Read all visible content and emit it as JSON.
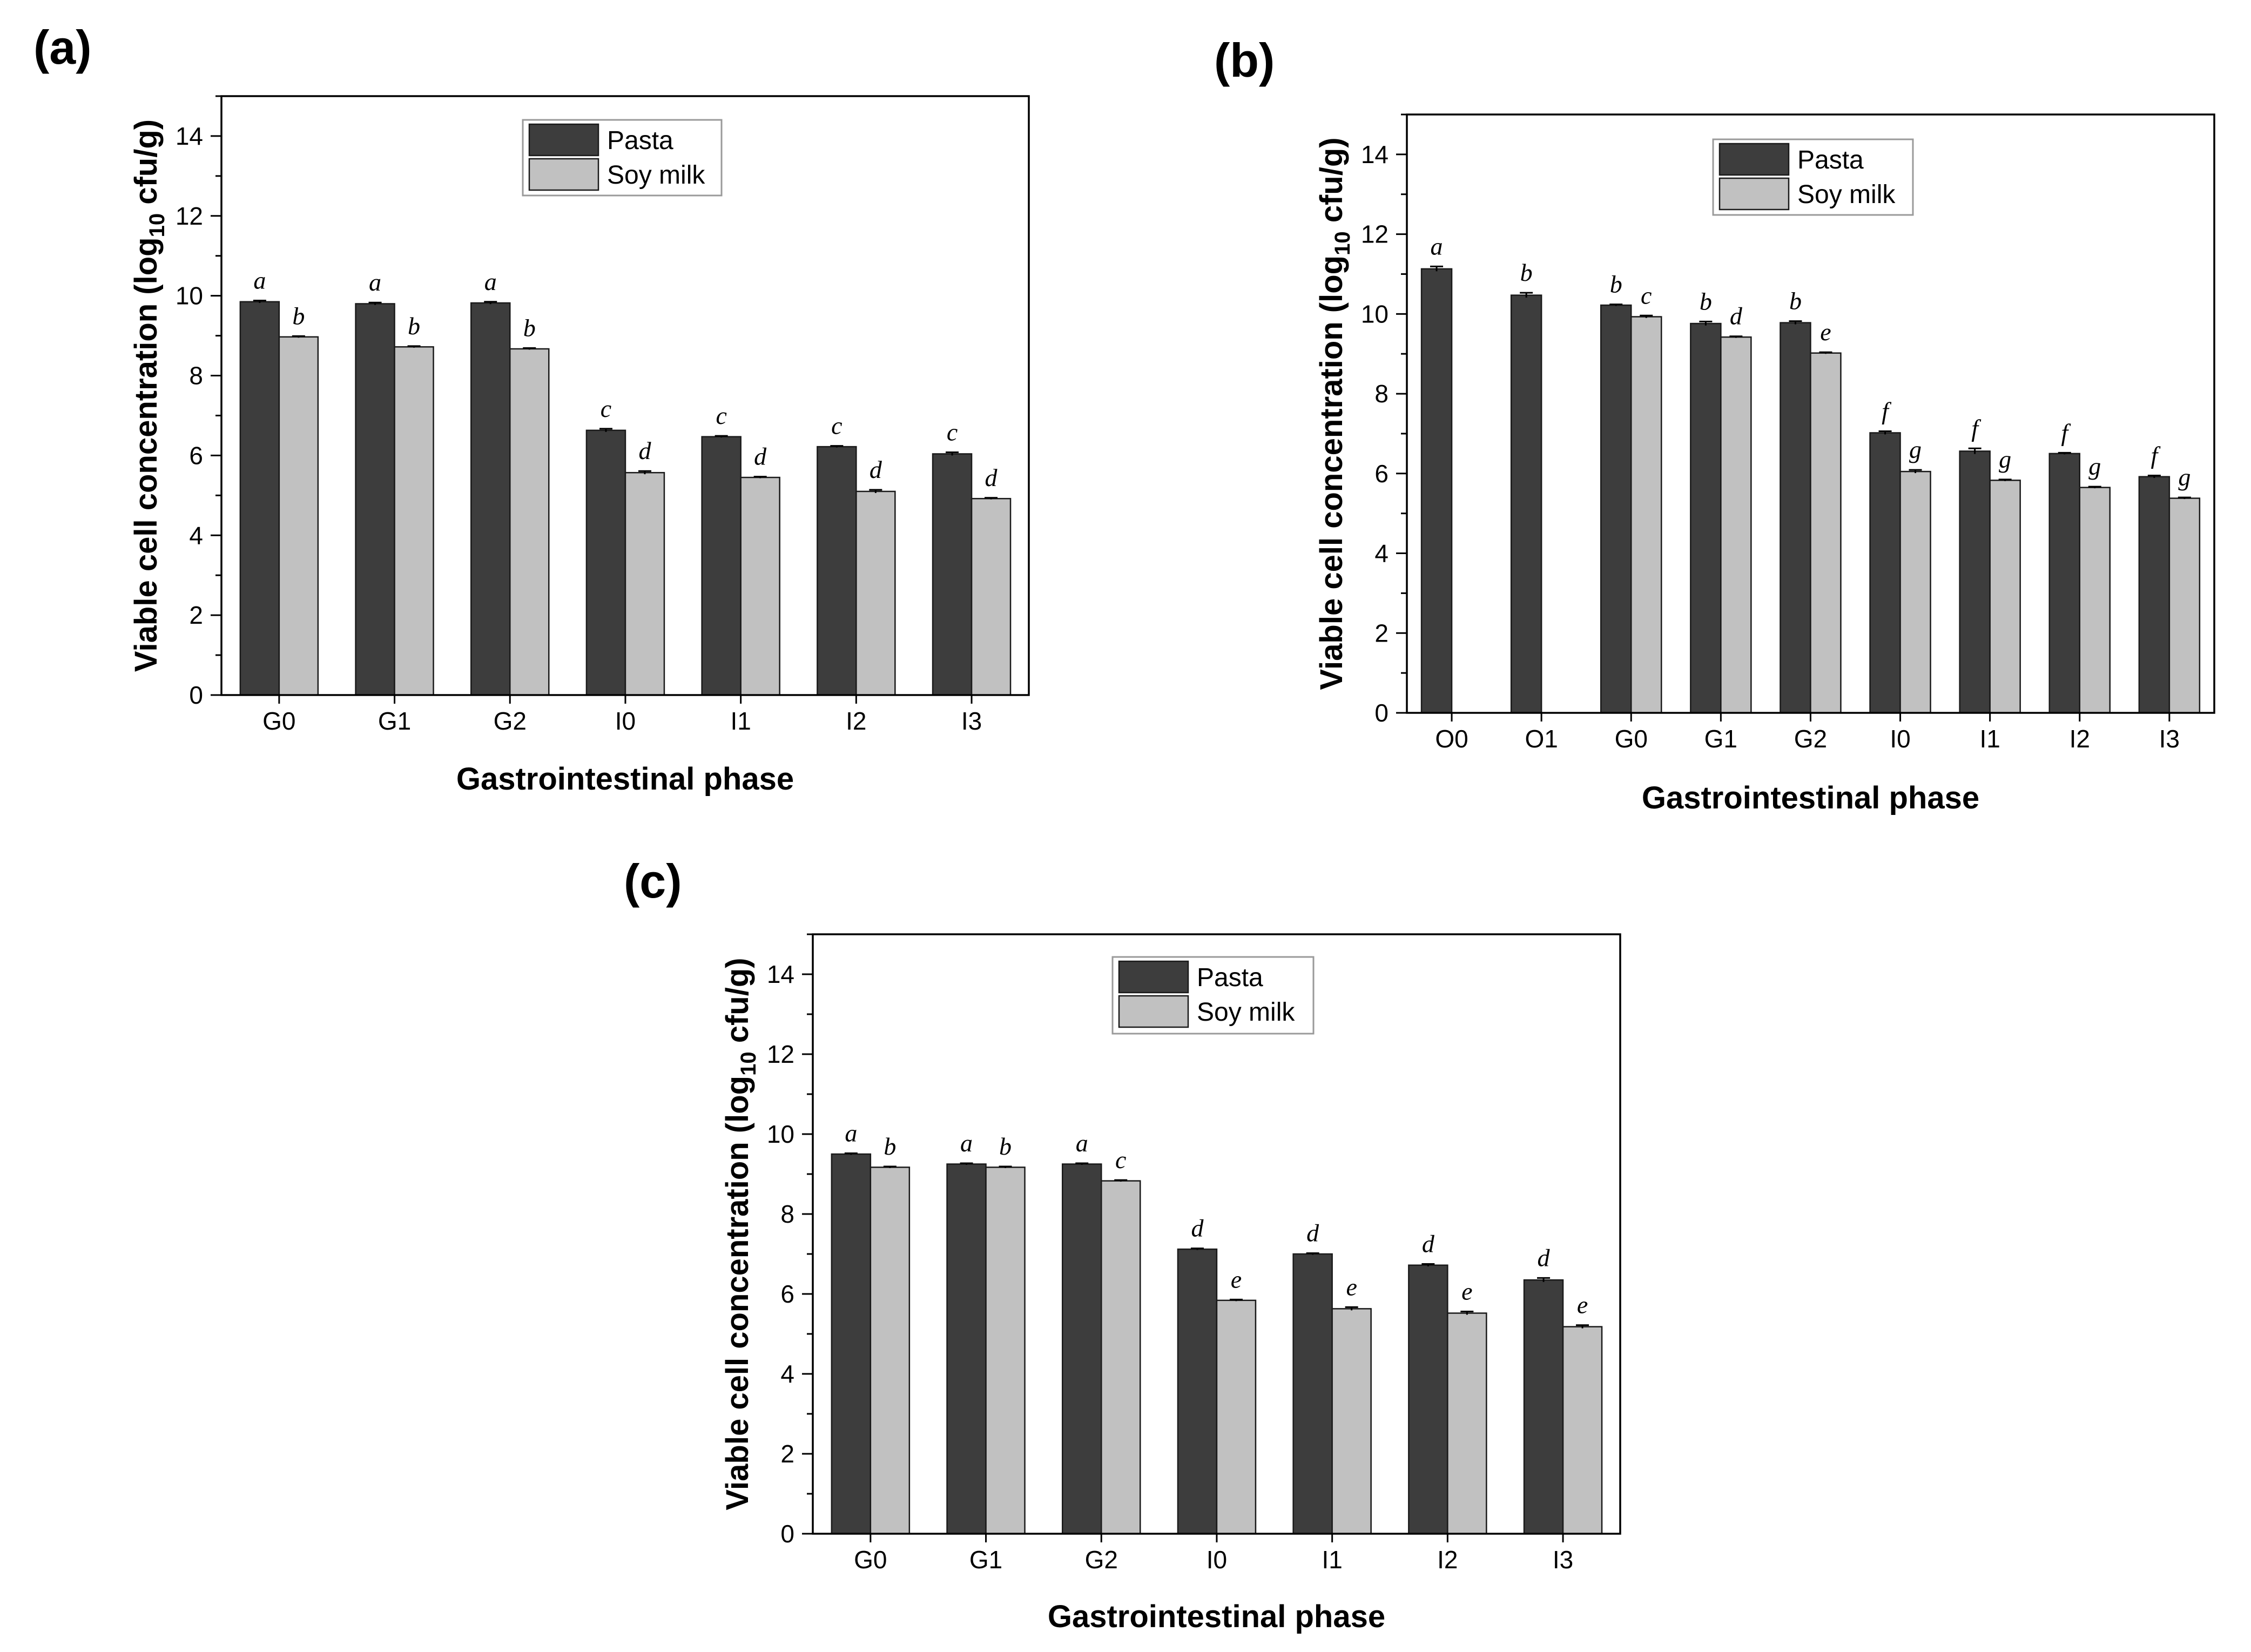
{
  "figure": {
    "colors": {
      "pasta": "#3d3d3d",
      "soy_milk": "#c1c1c1",
      "axis": "#000000"
    }
  },
  "chart_data": [
    {
      "panel": "(a)",
      "type": "bar",
      "xlabel": "Gastrointestinal phase",
      "ylabel": "Viable cell concentration (log",
      "ylabel_sub": "10",
      "ylabel_unit": " cfu/g)",
      "ylim": [
        0,
        15
      ],
      "yticks": [
        0,
        2,
        4,
        6,
        8,
        10,
        12,
        14
      ],
      "legend_position": "top-center",
      "categories": [
        "G0",
        "G1",
        "G2",
        "I0",
        "I1",
        "I2",
        "I3"
      ],
      "series": [
        {
          "name": "Pasta",
          "values": [
            9.85,
            9.8,
            9.82,
            6.63,
            6.47,
            6.22,
            6.04
          ],
          "errors": [
            0.03,
            0.03,
            0.03,
            0.04,
            0.02,
            0.02,
            0.04
          ],
          "letters": [
            "a",
            "a",
            "a",
            "c",
            "c",
            "c",
            "c"
          ]
        },
        {
          "name": "Soy milk",
          "values": [
            8.97,
            8.72,
            8.67,
            5.57,
            5.45,
            5.1,
            4.92
          ],
          "errors": [
            0.02,
            0.02,
            0.02,
            0.04,
            0.02,
            0.04,
            0.02
          ],
          "letters": [
            "b",
            "b",
            "b",
            "d",
            "d",
            "d",
            "d"
          ]
        }
      ]
    },
    {
      "panel": "(b)",
      "type": "bar",
      "xlabel": "Gastrointestinal phase",
      "ylabel": "Viable cell concentration (log",
      "ylabel_sub": "10",
      "ylabel_unit": " cfu/g)",
      "ylim": [
        0,
        15
      ],
      "yticks": [
        0,
        2,
        4,
        6,
        8,
        10,
        12,
        14
      ],
      "legend_position": "top-center",
      "categories": [
        "O0",
        "O1",
        "G0",
        "G1",
        "G2",
        "I0",
        "I1",
        "I2",
        "I3"
      ],
      "series": [
        {
          "name": "Pasta",
          "values": [
            11.13,
            10.47,
            10.22,
            9.76,
            9.78,
            7.02,
            6.56,
            6.5,
            5.92
          ],
          "errors": [
            0.06,
            0.06,
            0.02,
            0.05,
            0.04,
            0.04,
            0.07,
            0.02,
            0.03
          ],
          "letters": [
            "a",
            "b",
            "b",
            "b",
            "b",
            "f",
            "f",
            "f",
            "f"
          ]
        },
        {
          "name": "Soy milk",
          "values": [
            null,
            null,
            9.93,
            9.42,
            9.02,
            6.05,
            5.83,
            5.65,
            5.38
          ],
          "errors": [
            null,
            null,
            0.03,
            0.02,
            0.02,
            0.04,
            0.02,
            0.02,
            0.02
          ],
          "letters": [
            "",
            "",
            "c",
            "d",
            "e",
            "g",
            "g",
            "g",
            "g"
          ]
        }
      ]
    },
    {
      "panel": "(c)",
      "type": "bar",
      "xlabel": "Gastrointestinal phase",
      "ylabel": "Viable cell concentration (log",
      "ylabel_sub": "10",
      "ylabel_unit": " cfu/g)",
      "ylim": [
        0,
        15
      ],
      "yticks": [
        0,
        2,
        4,
        6,
        8,
        10,
        12,
        14
      ],
      "legend_position": "top-center",
      "categories": [
        "G0",
        "G1",
        "G2",
        "I0",
        "I1",
        "I2",
        "I3"
      ],
      "series": [
        {
          "name": "Pasta",
          "values": [
            9.5,
            9.25,
            9.25,
            7.12,
            7.0,
            6.72,
            6.35
          ],
          "errors": [
            0.02,
            0.02,
            0.02,
            0.02,
            0.02,
            0.03,
            0.05
          ],
          "letters": [
            "a",
            "a",
            "a",
            "d",
            "d",
            "d",
            "d"
          ]
        },
        {
          "name": "Soy milk",
          "values": [
            9.17,
            9.17,
            8.83,
            5.84,
            5.63,
            5.52,
            5.18
          ],
          "errors": [
            0.02,
            0.02,
            0.02,
            0.02,
            0.04,
            0.04,
            0.04
          ],
          "letters": [
            "b",
            "b",
            "c",
            "e",
            "e",
            "e",
            "e"
          ]
        }
      ]
    }
  ]
}
